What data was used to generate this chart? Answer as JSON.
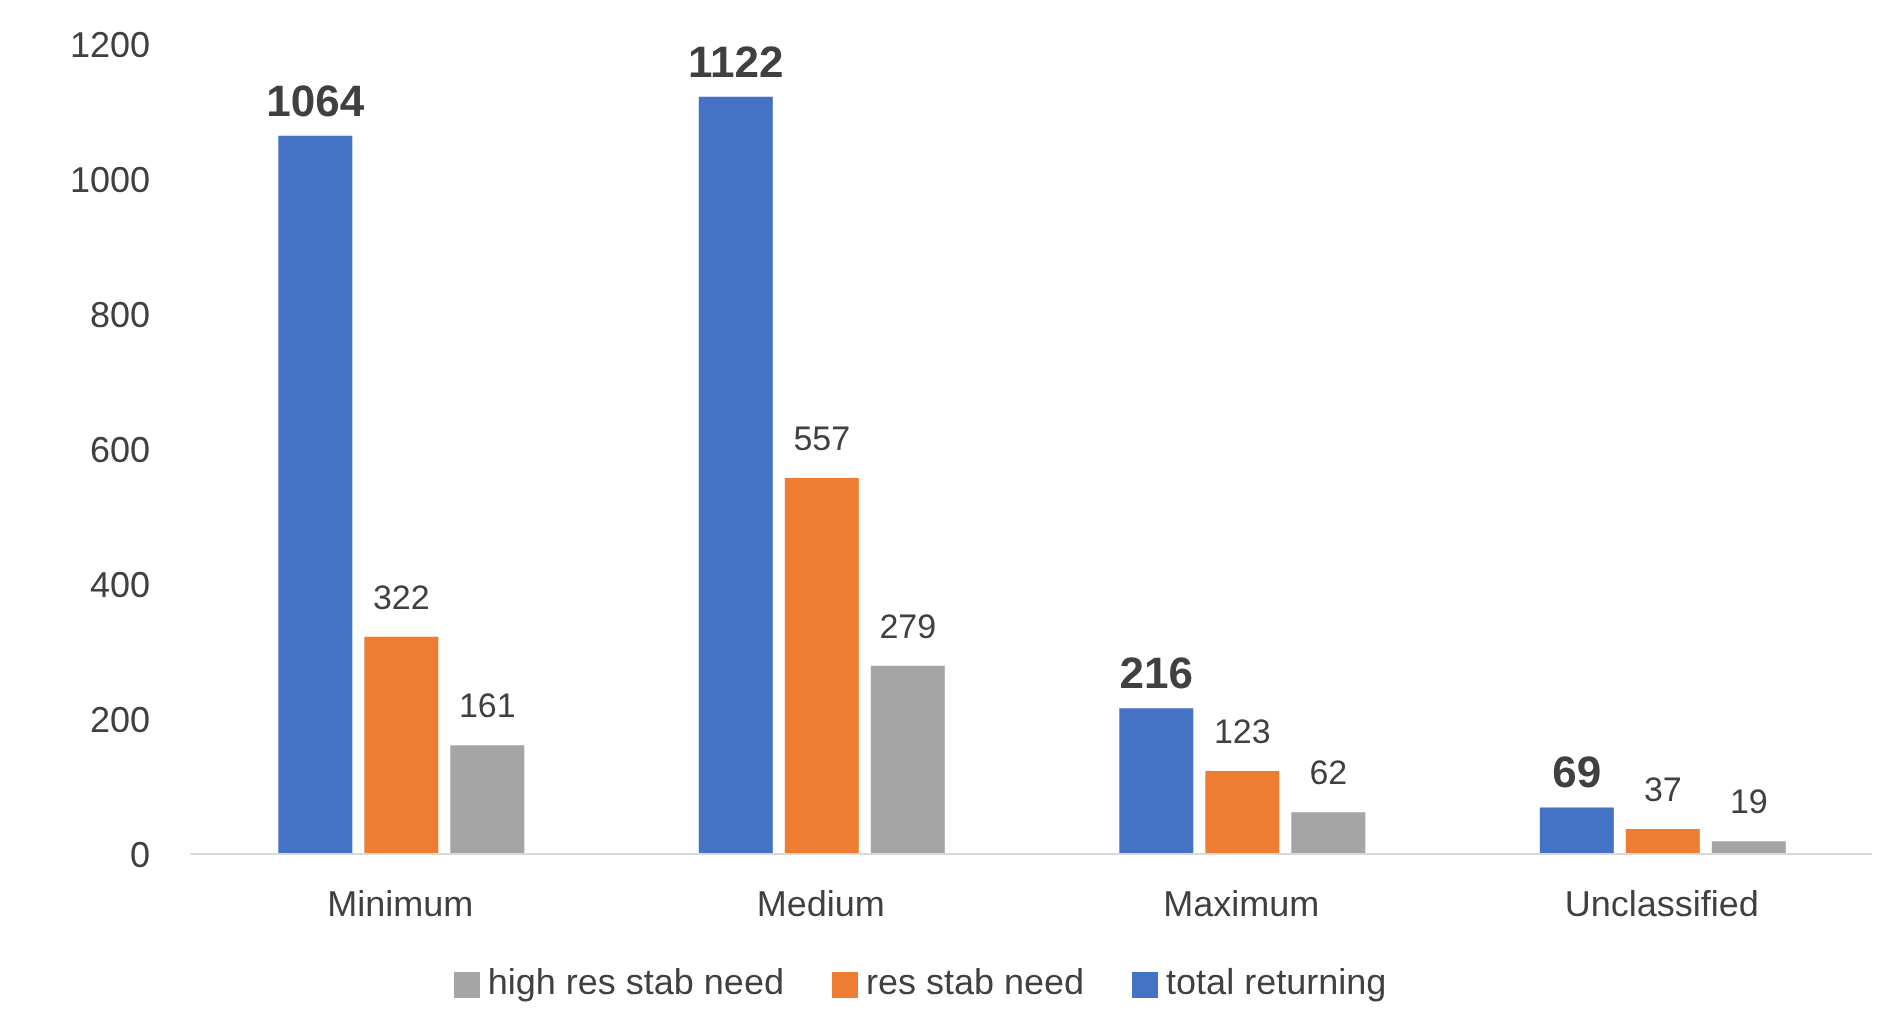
{
  "chart_data": {
    "type": "bar",
    "categories": [
      "Minimum",
      "Medium",
      "Maximum",
      "Unclassified"
    ],
    "series": [
      {
        "name": "total returning",
        "color": "#4472c4",
        "values": [
          1064,
          1122,
          216,
          69
        ]
      },
      {
        "name": "res stab need",
        "color": "#ed7d31",
        "values": [
          322,
          557,
          123,
          37
        ]
      },
      {
        "name": "high res stab need",
        "color": "#a5a5a5",
        "values": [
          161,
          279,
          62,
          19
        ]
      }
    ],
    "ylim": [
      0,
      1200
    ],
    "yticks": [
      0,
      200,
      400,
      600,
      800,
      1000,
      1200
    ],
    "grid": false,
    "legend": "bottom",
    "data_labels": true
  }
}
